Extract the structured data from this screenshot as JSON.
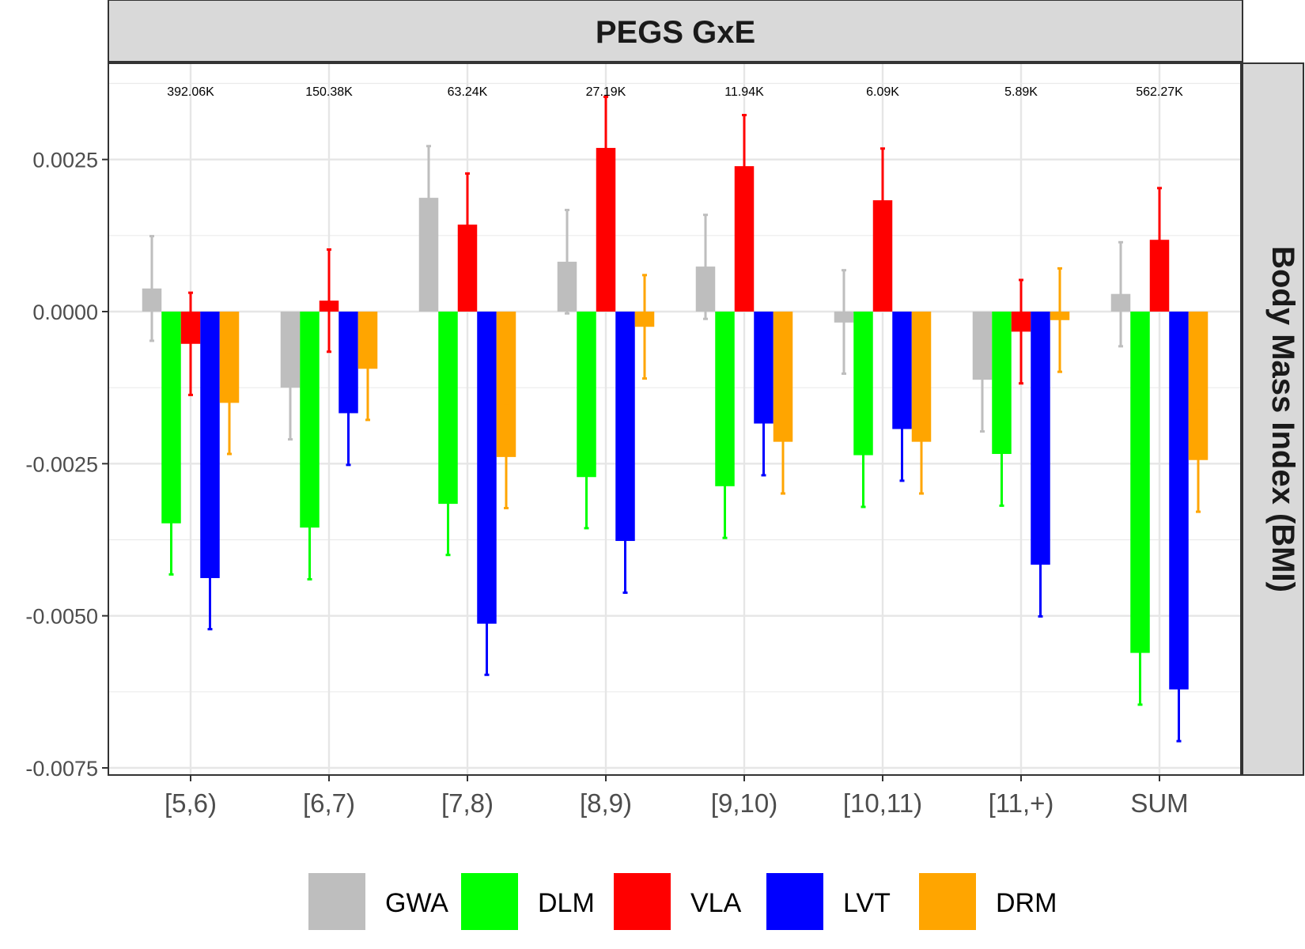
{
  "chart_data": {
    "type": "bar",
    "title": "PEGS GxE",
    "ylabel": "Body Mass Index (BMI)",
    "xlabel": "",
    "categories": [
      "[5,6)",
      "[6,7)",
      "[7,8)",
      "[8,9)",
      "[9,10)",
      "[10,11)",
      "[11,+)",
      "SUM"
    ],
    "counts": [
      "392.06K",
      "150.38K",
      "63.24K",
      "27.19K",
      "11.94K",
      "6.09K",
      "5.89K",
      "562.27K"
    ],
    "ylim": [
      -0.0075,
      0.004
    ],
    "yticks": [
      0.0025,
      0.0,
      -0.0025,
      -0.005,
      -0.0075
    ],
    "ytick_labels": [
      "0.0025",
      "0.0000",
      "-0.0025",
      "-0.0050",
      "-0.0075"
    ],
    "grid": true,
    "legend_position": "bottom",
    "series": [
      {
        "name": "GWA",
        "color": "#bebebe",
        "values": [
          0.00038,
          -0.00125,
          0.00187,
          0.00082,
          0.00074,
          -0.00018,
          -0.00112,
          0.00029
        ],
        "err_low": [
          -0.00048,
          -0.0021,
          0.00112,
          -3e-05,
          -0.00012,
          -0.00102,
          -0.00197,
          -0.00057
        ],
        "err_high": [
          0.00124,
          -0.0004,
          0.00272,
          0.00167,
          0.00159,
          0.00068,
          -0.00027,
          0.00114
        ]
      },
      {
        "name": "DLM",
        "color": "#00ff00",
        "values": [
          -0.00348,
          -0.00355,
          -0.00316,
          -0.00272,
          -0.00287,
          -0.00236,
          -0.00234,
          -0.00561
        ],
        "err_low": [
          -0.00432,
          -0.0044,
          -0.004,
          -0.00356,
          -0.00372,
          -0.00321,
          -0.00319,
          -0.00646
        ],
        "err_high": [
          -0.00264,
          -0.0027,
          -0.00232,
          -0.00188,
          -0.00202,
          -0.00151,
          -0.00149,
          -0.00476
        ]
      },
      {
        "name": "VLA",
        "color": "#ff0000",
        "values": [
          -0.00053,
          0.00018,
          0.00143,
          0.00269,
          0.00239,
          0.00183,
          -0.00033,
          0.00118
        ],
        "err_low": [
          -0.00137,
          -0.00066,
          0.00059,
          0.00185,
          0.00154,
          0.00098,
          -0.00118,
          0.00033
        ],
        "err_high": [
          0.00031,
          0.00102,
          0.00227,
          0.00353,
          0.00323,
          0.00268,
          0.00052,
          0.00203
        ]
      },
      {
        "name": "LVT",
        "color": "#0000ff",
        "values": [
          -0.00438,
          -0.00167,
          -0.00513,
          -0.00377,
          -0.00184,
          -0.00193,
          -0.00416,
          -0.00621
        ],
        "err_low": [
          -0.00522,
          -0.00252,
          -0.00597,
          -0.00462,
          -0.00269,
          -0.00278,
          -0.00501,
          -0.00706
        ],
        "err_high": [
          -0.00354,
          -0.00082,
          -0.00429,
          -0.00292,
          -0.00099,
          -0.00108,
          -0.00331,
          -0.00536
        ]
      },
      {
        "name": "DRM",
        "color": "#ffa500",
        "values": [
          -0.0015,
          -0.00094,
          -0.00239,
          -0.00025,
          -0.00214,
          -0.00214,
          -0.00014,
          -0.00244
        ],
        "err_low": [
          -0.00234,
          -0.00178,
          -0.00323,
          -0.0011,
          -0.00299,
          -0.00299,
          -0.00099,
          -0.00329
        ],
        "err_high": [
          -0.00066,
          -0.0001,
          -0.00155,
          0.0006,
          -0.00129,
          -0.00129,
          0.00071,
          -0.00159
        ]
      }
    ]
  }
}
